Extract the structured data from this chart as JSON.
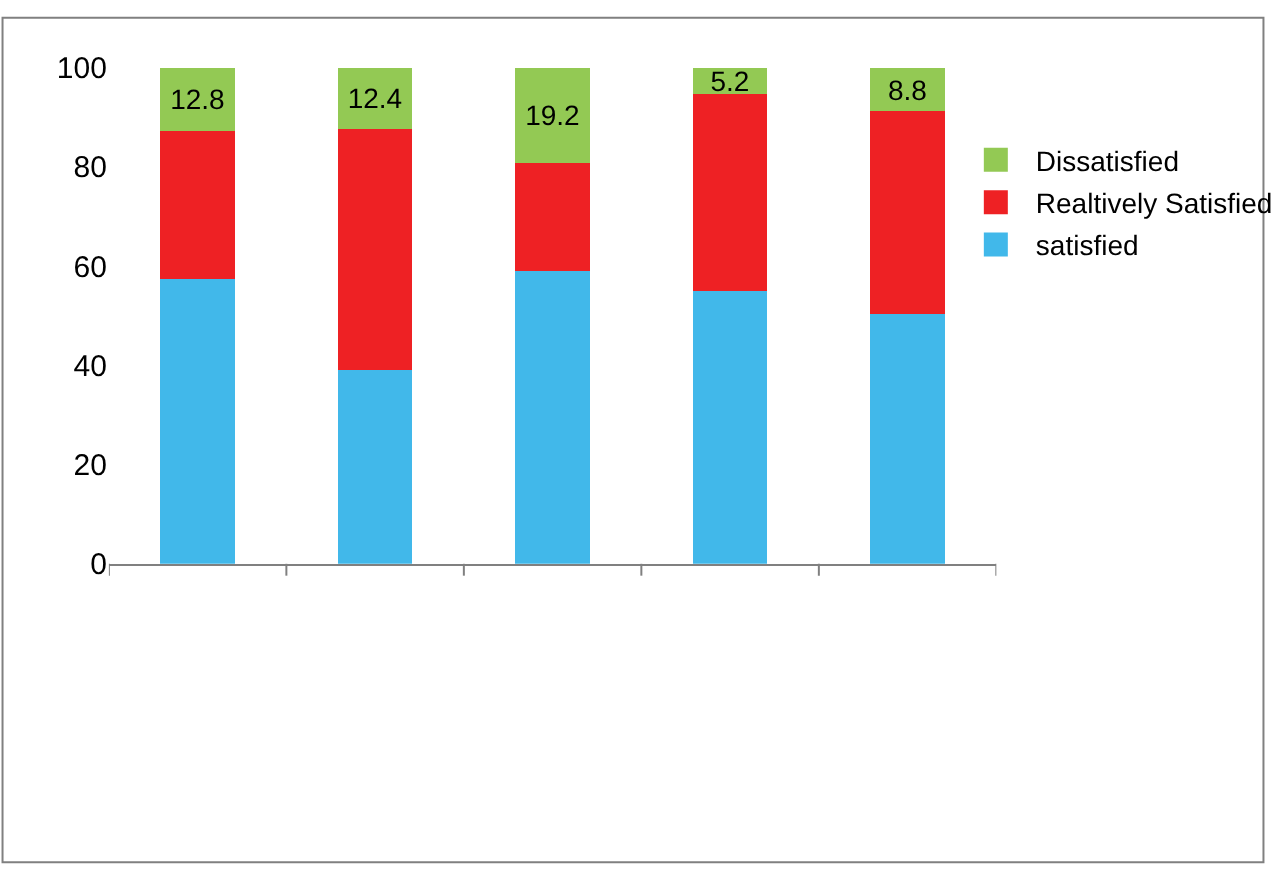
{
  "chart_data": {
    "type": "bar",
    "stacked": true,
    "categories": [
      null,
      null,
      null,
      null,
      null
    ],
    "ylim": [
      0,
      100
    ],
    "yticks": [
      0,
      20,
      40,
      60,
      80,
      100
    ],
    "legend": "right",
    "series": [
      {
        "name": "satisfied",
        "color": "#41b8ea",
        "values": [
          57.4,
          39,
          59,
          55,
          50.4
        ]
      },
      {
        "name": "Realtively Satisfied",
        "color": "#ee2124",
        "values": [
          29.8,
          48.6,
          21.8,
          39.8,
          40.8
        ]
      },
      {
        "name": "Dissatisfied",
        "color": "#93c954",
        "values": [
          12.8,
          12.4,
          19.2,
          5.2,
          8.8
        ],
        "value_labels": [
          "12.8",
          "12.4",
          "19.2",
          "5.2",
          "8.8"
        ]
      }
    ]
  }
}
